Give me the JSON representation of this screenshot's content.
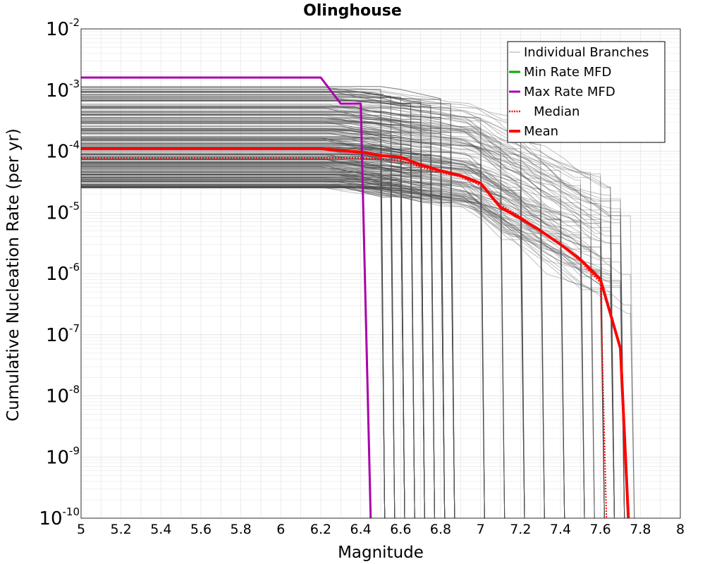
{
  "chart_data": {
    "type": "line",
    "title": "Olinghouse",
    "xlabel": "Magnitude",
    "ylabel": "Cumulative Nucleation Rate (per yr)",
    "xlim": [
      5,
      8
    ],
    "ylim": [
      1e-10,
      0.01
    ],
    "yscale": "log",
    "grid": true,
    "legend_position": "top-right",
    "x_ticks": [
      "5",
      "5.2",
      "5.4",
      "5.6",
      "5.8",
      "6",
      "6.2",
      "6.4",
      "6.6",
      "6.8",
      "7",
      "7.2",
      "7.4",
      "7.6",
      "7.8",
      "8"
    ],
    "y_ticks": [
      {
        "base": "10",
        "exp": "-2"
      },
      {
        "base": "10",
        "exp": "-3"
      },
      {
        "base": "10",
        "exp": "-4"
      },
      {
        "base": "10",
        "exp": "-5"
      },
      {
        "base": "10",
        "exp": "-6"
      },
      {
        "base": "10",
        "exp": "-7"
      },
      {
        "base": "10",
        "exp": "-8"
      },
      {
        "base": "10",
        "exp": "-9"
      },
      {
        "base": "10",
        "exp": "-10"
      }
    ],
    "legend": [
      {
        "label": "Individual Branches",
        "color": "#aaaaaa",
        "style": "thin"
      },
      {
        "label": "Min Rate MFD",
        "color": "#00aa00",
        "style": "solid"
      },
      {
        "label": "Max Rate MFD",
        "color": "#aa00aa",
        "style": "solid"
      },
      {
        "label": "Median",
        "color": "#ff0000",
        "style": "dotted"
      },
      {
        "label": "Mean",
        "color": "#ff0000",
        "style": "thick"
      }
    ],
    "series": [
      {
        "name": "Max Rate MFD",
        "color": "#aa00aa",
        "x": [
          5.0,
          6.2,
          6.3,
          6.4,
          6.45
        ],
        "y": [
          0.0016,
          0.0016,
          0.0006,
          0.0006,
          1e-10
        ]
      },
      {
        "name": "Median",
        "color": "#ff0000",
        "x": [
          5.0,
          6.4,
          6.5,
          6.6,
          6.7,
          6.8,
          6.9,
          7.0,
          7.1,
          7.2,
          7.3,
          7.4,
          7.5,
          7.6,
          7.63
        ],
        "y": [
          7.8e-05,
          7.8e-05,
          7.5e-05,
          7e-05,
          5.5e-05,
          4.5e-05,
          3.8e-05,
          2.8e-05,
          1.3e-05,
          8.5e-06,
          5e-06,
          3e-06,
          1.6e-06,
          7e-07,
          1e-10
        ]
      },
      {
        "name": "Mean",
        "color": "#ff0000",
        "x": [
          5.0,
          6.2,
          6.3,
          6.4,
          6.5,
          6.6,
          6.7,
          6.8,
          6.9,
          7.0,
          7.1,
          7.2,
          7.3,
          7.4,
          7.5,
          7.6,
          7.7,
          7.74
        ],
        "y": [
          0.00011,
          0.00011,
          0.000102,
          9.7e-05,
          8.5e-05,
          8e-05,
          6e-05,
          4.8e-05,
          4e-05,
          3e-05,
          1.2e-05,
          8e-06,
          5e-06,
          3e-06,
          1.7e-06,
          8e-07,
          6e-08,
          1e-10
        ]
      }
    ],
    "branches_summary": {
      "color": "#4d4d4d",
      "flat_rate_range": [
        2.5e-05,
        0.0012
      ],
      "drop_magnitudes": [
        6.5,
        6.55,
        6.6,
        6.65,
        6.7,
        6.75,
        6.8,
        6.85,
        7.0,
        7.1,
        7.2,
        7.3,
        7.4,
        7.5,
        7.55,
        7.6,
        7.65,
        7.7,
        7.75
      ]
    }
  }
}
